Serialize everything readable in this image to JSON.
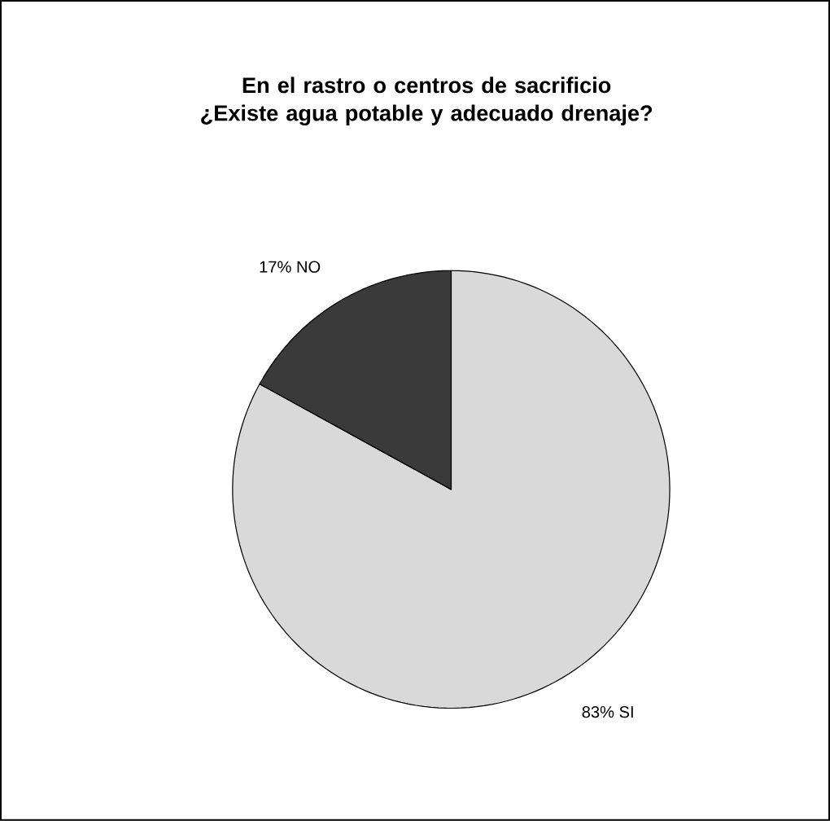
{
  "chart_data": {
    "type": "pie",
    "title": "En el rastro o centros de sacrificio ¿Existe agua potable y adecuado drenaje?",
    "categories": [
      "SI",
      "NO"
    ],
    "values": [
      83,
      17
    ],
    "value_labels": [
      "83%",
      "17%"
    ],
    "colors": [
      "#d9d9d9",
      "#3a3a3a"
    ]
  }
}
